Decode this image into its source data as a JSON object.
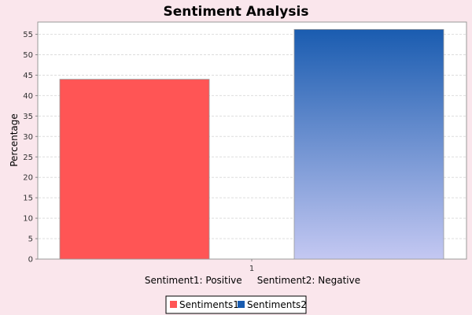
{
  "chart_data": {
    "type": "bar",
    "title": "Sentiment Analysis",
    "xlabel": "Sentiment1: Positive     Sentiment2: Negative",
    "ylabel": "Percentage",
    "categories": [
      "1"
    ],
    "ylim": [
      0,
      58
    ],
    "yticks": [
      0,
      5,
      10,
      15,
      20,
      25,
      30,
      35,
      40,
      45,
      50,
      55
    ],
    "grid": true,
    "legend_position": "bottom",
    "series": [
      {
        "name": "Sentiments1",
        "values": [
          44
        ],
        "color": "#ff5555"
      },
      {
        "name": "Sentiments2",
        "values": [
          56.2
        ],
        "color": "#1a5cb0",
        "gradient_end": "#c4c8f2"
      }
    ]
  }
}
